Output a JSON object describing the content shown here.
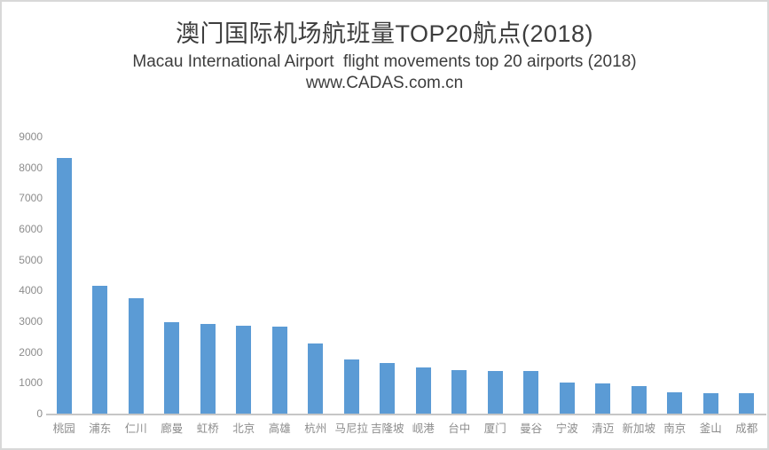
{
  "chart_data": {
    "type": "bar",
    "title": "澳门国际机场航班量TOP20航点(2018)",
    "subtitle": "Macau International Airport  flight movements top 20 airports (2018)",
    "watermark": "www.CADAS.com.cn",
    "categories": [
      "桃园",
      "浦东",
      "仁川",
      "廊曼",
      "虹桥",
      "北京",
      "高雄",
      "杭州",
      "马尼拉",
      "吉隆坡",
      "岘港",
      "台中",
      "厦门",
      "曼谷",
      "宁波",
      "清迈",
      "新加坡",
      "南京",
      "釜山",
      "成都"
    ],
    "values": [
      8300,
      4150,
      3760,
      2970,
      2900,
      2870,
      2830,
      2290,
      1760,
      1640,
      1500,
      1410,
      1380,
      1380,
      1000,
      980,
      900,
      690,
      670,
      650
    ],
    "xlabel": "",
    "ylabel": "",
    "ylim": [
      0,
      9000
    ],
    "ytick_interval": 1000,
    "grid": false,
    "legend": false,
    "colors": {
      "bar": "#5b9bd5",
      "axis_line": "#c6c6c6",
      "tick_label": "#8c8c8c",
      "title_text": "#3d3d3d",
      "frame_border": "#d8d8d8",
      "background": "#ffffff"
    }
  }
}
